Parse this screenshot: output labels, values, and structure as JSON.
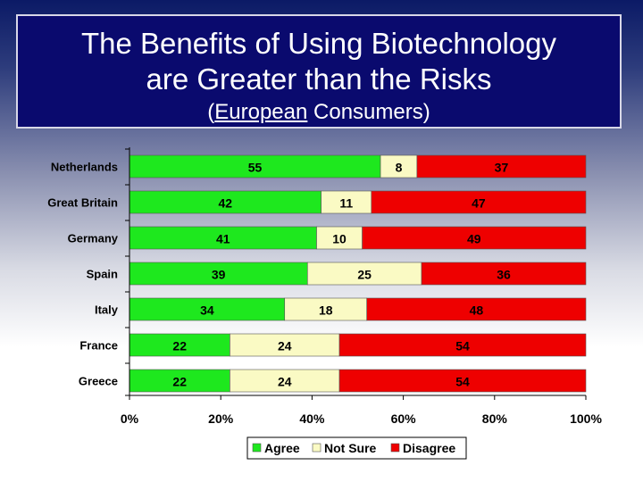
{
  "header": {
    "title_line1": "The Benefits of Using Biotechnology",
    "title_line2": "are Greater than the Risks",
    "subtitle_open": "(",
    "subtitle_underlined": "European",
    "subtitle_rest": " Consumers)"
  },
  "chart_data": {
    "type": "bar",
    "orientation": "horizontal",
    "stacked": true,
    "percent_stacked": true,
    "categories": [
      "Netherlands",
      "Great Britain",
      "Germany",
      "Spain",
      "Italy",
      "France",
      "Greece"
    ],
    "series": [
      {
        "name": "Agree",
        "color": "#1ee81e",
        "values": [
          55,
          42,
          41,
          39,
          34,
          22,
          22
        ]
      },
      {
        "name": "Not Sure",
        "color": "#fafac4",
        "values": [
          8,
          11,
          10,
          25,
          18,
          24,
          24
        ]
      },
      {
        "name": "Disagree",
        "color": "#ee0000",
        "values": [
          37,
          47,
          49,
          36,
          48,
          54,
          54
        ]
      }
    ],
    "xlim": [
      0,
      100
    ],
    "xticks": [
      "0%",
      "20%",
      "40%",
      "60%",
      "80%",
      "100%"
    ],
    "grid": false,
    "legend_position": "bottom"
  }
}
